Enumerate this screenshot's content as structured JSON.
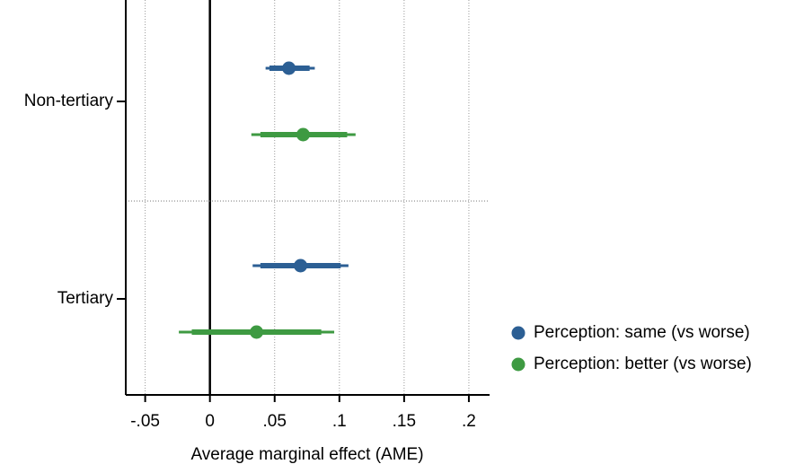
{
  "chart_data": {
    "type": "coefplot",
    "x_label": "Average marginal effect (AME)",
    "categories": [
      "Non-tertiary",
      "Tertiary"
    ],
    "series": [
      {
        "name": "Perception: same (vs worse)",
        "color": "#2c5f94",
        "values": [
          0.061,
          0.07
        ],
        "ci_inner_low": [
          0.046,
          0.039
        ],
        "ci_inner_high": [
          0.077,
          0.101
        ],
        "ci_outer_low": [
          0.043,
          0.033
        ],
        "ci_outer_high": [
          0.081,
          0.107
        ]
      },
      {
        "name": "Perception: better (vs worse)",
        "color": "#3e9a42",
        "values": [
          0.072,
          0.036
        ],
        "ci_inner_low": [
          0.039,
          -0.014
        ],
        "ci_inner_high": [
          0.106,
          0.086
        ],
        "ci_outer_low": [
          0.032,
          -0.024
        ],
        "ci_outer_high": [
          0.1125,
          0.096
        ]
      }
    ],
    "xlim": [
      -0.065,
      0.216
    ],
    "xticks": [
      {
        "value": -0.05,
        "label": "-.05"
      },
      0,
      {
        "value": 0.05,
        "label": ".05"
      },
      {
        "value": 0.1,
        "label": ".1"
      },
      {
        "value": 0.15,
        "label": ".15"
      },
      {
        "value": 0.2,
        "label": ".2"
      }
    ],
    "grid": true
  }
}
